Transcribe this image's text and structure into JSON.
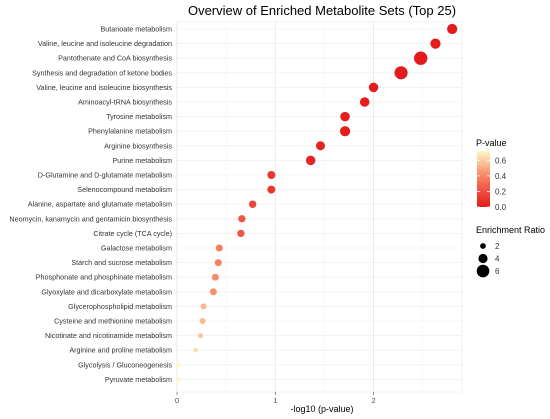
{
  "chart_data": {
    "type": "scatter",
    "title": "Overview of Enriched Metabolite Sets (Top 25)",
    "xlabel": "-log10 (p-value)",
    "ylabel": "",
    "xlim": [
      0,
      2.9
    ],
    "xticks": [
      0,
      1,
      2
    ],
    "grid": true,
    "legend_position": "right",
    "color_scale": {
      "title": "P-value",
      "ticks": [
        0.6,
        0.4,
        0.2,
        0.0
      ],
      "range": [
        0.0,
        0.72
      ],
      "colors": [
        "#e41a1c",
        "#f7795a",
        "#fff6c4"
      ]
    },
    "size_legend": {
      "title": "Enrichment Ratio",
      "values": [
        2,
        4,
        6
      ]
    },
    "points": [
      {
        "name": "Butanoate metabolism",
        "x": 2.8,
        "p": 0.0016,
        "ratio": 4.6
      },
      {
        "name": "Valine, leucine and isoleucine degradation",
        "x": 2.63,
        "p": 0.0023,
        "ratio": 4.6
      },
      {
        "name": "Pantothenate and CoA biosynthesis",
        "x": 2.48,
        "p": 0.0033,
        "ratio": 6.5
      },
      {
        "name": "Synthesis and degradation of ketone bodies",
        "x": 2.28,
        "p": 0.0052,
        "ratio": 6.3
      },
      {
        "name": "Valine, leucine and isoleucine biosynthesis",
        "x": 2.0,
        "p": 0.01,
        "ratio": 4.2
      },
      {
        "name": "Aminoacyl-tRNA biosynthesis",
        "x": 1.91,
        "p": 0.012,
        "ratio": 4.2
      },
      {
        "name": "Tyrosine metabolism",
        "x": 1.71,
        "p": 0.02,
        "ratio": 4.2
      },
      {
        "name": "Phenylalanine metabolism",
        "x": 1.71,
        "p": 0.02,
        "ratio": 4.6
      },
      {
        "name": "Arginine biosynthesis",
        "x": 1.46,
        "p": 0.035,
        "ratio": 3.9
      },
      {
        "name": "Purine metabolism",
        "x": 1.36,
        "p": 0.044,
        "ratio": 4.2
      },
      {
        "name": "D-Glutamine and D-glutamate metabolism",
        "x": 0.96,
        "p": 0.11,
        "ratio": 3.3
      },
      {
        "name": "Selenocompound metabolism",
        "x": 0.96,
        "p": 0.11,
        "ratio": 3.3
      },
      {
        "name": "Alanine, aspartate and glutamate metabolism",
        "x": 0.77,
        "p": 0.17,
        "ratio": 3.0
      },
      {
        "name": "Neomycin, kanamycin and gentamicin biosynthesis",
        "x": 0.66,
        "p": 0.22,
        "ratio": 2.9
      },
      {
        "name": "Citrate cycle (TCA cycle)",
        "x": 0.65,
        "p": 0.22,
        "ratio": 2.9
      },
      {
        "name": "Galactose metabolism",
        "x": 0.43,
        "p": 0.37,
        "ratio": 2.7
      },
      {
        "name": "Starch and sucrose metabolism",
        "x": 0.42,
        "p": 0.38,
        "ratio": 2.7
      },
      {
        "name": "Phosphonate and phosphinate metabolism",
        "x": 0.39,
        "p": 0.41,
        "ratio": 2.7
      },
      {
        "name": "Glyoxylate and dicarboxylate metabolism",
        "x": 0.37,
        "p": 0.43,
        "ratio": 2.7
      },
      {
        "name": "Glycerophospholipid metabolism",
        "x": 0.27,
        "p": 0.54,
        "ratio": 2.1
      },
      {
        "name": "Cysteine and methionine metabolism",
        "x": 0.26,
        "p": 0.55,
        "ratio": 2.1
      },
      {
        "name": "Nicotinate and nicotinamide metabolism",
        "x": 0.24,
        "p": 0.57,
        "ratio": 1.5
      },
      {
        "name": "Arginine and proline metabolism",
        "x": 0.19,
        "p": 0.65,
        "ratio": 1.3
      },
      {
        "name": "Glycolysis / Gluconeogenesis",
        "x": 0.02,
        "p": 0.95,
        "ratio": 1.0
      },
      {
        "name": "Pyruvate metabolism",
        "x": 0.02,
        "p": 0.95,
        "ratio": 1.0
      }
    ]
  }
}
